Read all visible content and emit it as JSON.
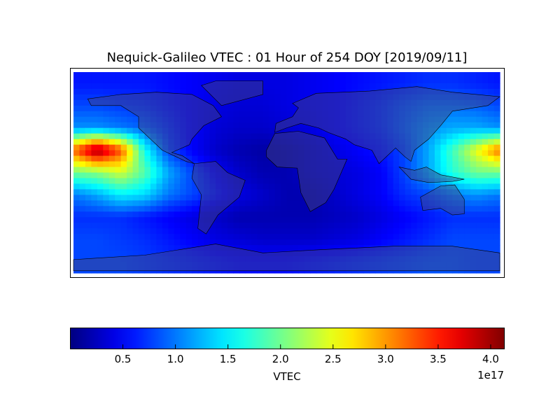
{
  "chart_data": {
    "type": "heatmap",
    "title": "Nequick-Galileo VTEC : 01 Hour of 254 DOY [2019/09/11]",
    "colormap": "jet",
    "colorbar": {
      "label": "VTEC",
      "exponent_label": "1e17",
      "range": [
        0.0,
        4.13
      ],
      "ticks": [
        0.5,
        1.0,
        1.5,
        2.0,
        2.5,
        3.0,
        3.5,
        4.0
      ],
      "tick_labels": [
        "0.5",
        "1.0",
        "1.5",
        "2.0",
        "2.5",
        "3.0",
        "3.5",
        "4.0"
      ],
      "placement": "bottom"
    },
    "x_longitudes": [
      -180,
      -160,
      -140,
      -120,
      -100,
      -80,
      -60,
      -40,
      -20,
      0,
      20,
      40,
      60,
      80,
      100,
      120,
      140,
      160,
      180
    ],
    "y_latitudes": [
      80,
      60,
      40,
      20,
      0,
      -20,
      -40,
      -60,
      -80
    ],
    "values": [
      [
        0.6,
        0.6,
        0.6,
        0.6,
        0.55,
        0.5,
        0.45,
        0.4,
        0.4,
        0.4,
        0.45,
        0.5,
        0.55,
        0.6,
        0.65,
        0.7,
        0.7,
        0.65,
        0.6
      ],
      [
        0.8,
        0.8,
        0.75,
        0.7,
        0.6,
        0.5,
        0.4,
        0.35,
        0.35,
        0.4,
        0.45,
        0.5,
        0.6,
        0.7,
        0.85,
        0.95,
        0.95,
        0.9,
        0.8
      ],
      [
        1.1,
        1.1,
        1.0,
        0.9,
        0.7,
        0.5,
        0.35,
        0.3,
        0.3,
        0.35,
        0.4,
        0.5,
        0.6,
        0.7,
        0.9,
        1.1,
        1.2,
        1.2,
        1.1
      ],
      [
        3.2,
        4.1,
        3.3,
        1.6,
        0.8,
        0.5,
        0.3,
        0.2,
        0.15,
        0.2,
        0.3,
        0.4,
        0.5,
        0.6,
        0.8,
        1.2,
        1.8,
        2.5,
        3.2
      ],
      [
        2.0,
        2.1,
        2.4,
        1.9,
        1.2,
        0.8,
        0.5,
        0.3,
        0.2,
        0.2,
        0.3,
        0.35,
        0.4,
        0.5,
        0.8,
        1.2,
        1.7,
        2.0,
        2.0
      ],
      [
        1.0,
        1.2,
        1.5,
        1.4,
        1.0,
        0.8,
        0.6,
        0.4,
        0.3,
        0.2,
        0.2,
        0.3,
        0.4,
        0.5,
        0.7,
        0.8,
        1.0,
        1.1,
        1.0
      ],
      [
        0.7,
        0.7,
        0.7,
        0.6,
        0.5,
        0.4,
        0.3,
        0.2,
        0.2,
        0.2,
        0.2,
        0.25,
        0.3,
        0.4,
        0.5,
        0.6,
        0.7,
        0.7,
        0.7
      ],
      [
        0.8,
        0.8,
        0.75,
        0.7,
        0.6,
        0.5,
        0.4,
        0.35,
        0.3,
        0.3,
        0.3,
        0.35,
        0.4,
        0.5,
        0.6,
        0.7,
        0.8,
        0.8,
        0.8
      ],
      [
        0.8,
        0.8,
        0.8,
        0.75,
        0.7,
        0.65,
        0.6,
        0.55,
        0.55,
        0.55,
        0.6,
        0.65,
        0.7,
        0.75,
        0.8,
        0.85,
        0.85,
        0.8,
        0.8
      ]
    ],
    "xlim": [
      -180,
      180
    ],
    "ylim": [
      -90,
      90
    ],
    "grid": false
  }
}
